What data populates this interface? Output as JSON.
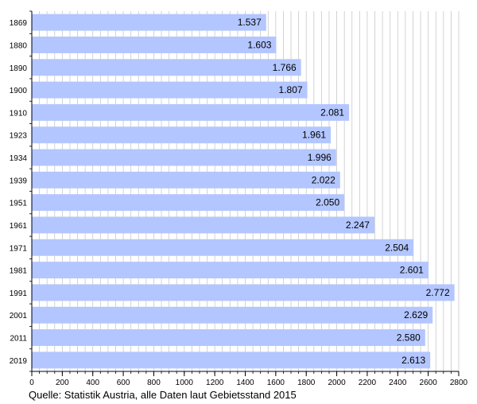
{
  "chart_data": {
    "type": "bar",
    "orientation": "horizontal",
    "categories": [
      "1869",
      "1880",
      "1890",
      "1900",
      "1910",
      "1923",
      "1934",
      "1939",
      "1951",
      "1961",
      "1971",
      "1981",
      "1991",
      "2001",
      "2011",
      "2019"
    ],
    "values": [
      1537,
      1603,
      1766,
      1807,
      2081,
      1961,
      1996,
      2022,
      2050,
      2247,
      2504,
      2601,
      2772,
      2629,
      2580,
      2613
    ],
    "data_labels": [
      "1.537",
      "1.603",
      "1.766",
      "1.807",
      "2.081",
      "1.961",
      "1.996",
      "2.022",
      "2.050",
      "2.247",
      "2.504",
      "2.601",
      "2.772",
      "2.629",
      "2.580",
      "2.613"
    ],
    "x_ticks": [
      "0",
      "200",
      "400",
      "600",
      "800",
      "1000",
      "1200",
      "1400",
      "1600",
      "1800",
      "2000",
      "2200",
      "2400",
      "2600",
      "2800"
    ],
    "xlim": [
      0,
      2800
    ],
    "x_minor_step": 50,
    "grid": "vertical",
    "bar_color": "#b3c6ff",
    "source": "Quelle: Statistik Austria, alle Daten laut Gebietsstand 2015"
  }
}
